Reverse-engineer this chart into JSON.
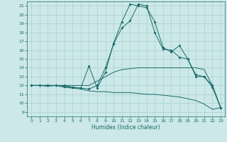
{
  "xlabel": "Humidex (Indice chaleur)",
  "xlim": [
    -0.5,
    23.5
  ],
  "ylim": [
    8.5,
    21.5
  ],
  "yticks": [
    9,
    10,
    11,
    12,
    13,
    14,
    15,
    16,
    17,
    18,
    19,
    20,
    21
  ],
  "xticks": [
    0,
    1,
    2,
    3,
    4,
    5,
    6,
    7,
    8,
    9,
    10,
    11,
    12,
    13,
    14,
    15,
    16,
    17,
    18,
    19,
    20,
    21,
    22,
    23
  ],
  "bg_color": "#cce8e8",
  "line_color": "#1a6b6b",
  "grid_color": "#aad0d0",
  "lines": [
    {
      "x": [
        0,
        1,
        2,
        3,
        4,
        5,
        6,
        7,
        8,
        9,
        10,
        11,
        12,
        13,
        14,
        15,
        16,
        17,
        18,
        19,
        20,
        21,
        22,
        23
      ],
      "y": [
        12,
        12,
        11.9,
        12,
        11.8,
        11.7,
        11.6,
        11.4,
        11.3,
        11.3,
        11.2,
        11.2,
        11.2,
        11.1,
        11.0,
        11.0,
        10.9,
        10.8,
        10.7,
        10.5,
        10.3,
        9.9,
        9.3,
        9.5
      ],
      "marker": false
    },
    {
      "x": [
        0,
        1,
        2,
        3,
        4,
        5,
        6,
        7,
        8,
        9,
        10,
        11,
        12,
        13,
        14,
        15,
        16,
        17,
        18,
        19,
        20,
        21,
        22,
        23
      ],
      "y": [
        12,
        12,
        12,
        12,
        12,
        12,
        12,
        12,
        12.5,
        13.0,
        13.5,
        13.8,
        13.9,
        14.0,
        14.0,
        14.0,
        14.0,
        14.0,
        14.0,
        14.0,
        14.0,
        13.8,
        12.0,
        9.5
      ],
      "marker": false
    },
    {
      "x": [
        0,
        1,
        2,
        3,
        4,
        5,
        6,
        7,
        8,
        9,
        10,
        11,
        12,
        13,
        14,
        15,
        16,
        17,
        18,
        19,
        20,
        21,
        22,
        23
      ],
      "y": [
        12,
        12,
        12,
        12,
        12,
        11.8,
        11.7,
        14.2,
        11.7,
        13.5,
        16.8,
        19.2,
        21.2,
        21.0,
        20.8,
        19.2,
        16.3,
        15.8,
        16.5,
        15.0,
        13.0,
        13.0,
        12.0,
        9.5
      ],
      "marker": true
    },
    {
      "x": [
        0,
        1,
        2,
        3,
        4,
        5,
        6,
        7,
        8,
        9,
        10,
        11,
        12,
        13,
        14,
        15,
        16,
        17,
        18,
        19,
        20,
        21,
        22,
        23
      ],
      "y": [
        12,
        12,
        12,
        12,
        11.9,
        11.8,
        11.7,
        11.6,
        12.0,
        14.0,
        16.7,
        18.5,
        19.3,
        21.2,
        21.0,
        18.0,
        16.1,
        16.0,
        15.2,
        15.0,
        13.2,
        13.0,
        11.8,
        9.5
      ],
      "marker": true
    }
  ]
}
